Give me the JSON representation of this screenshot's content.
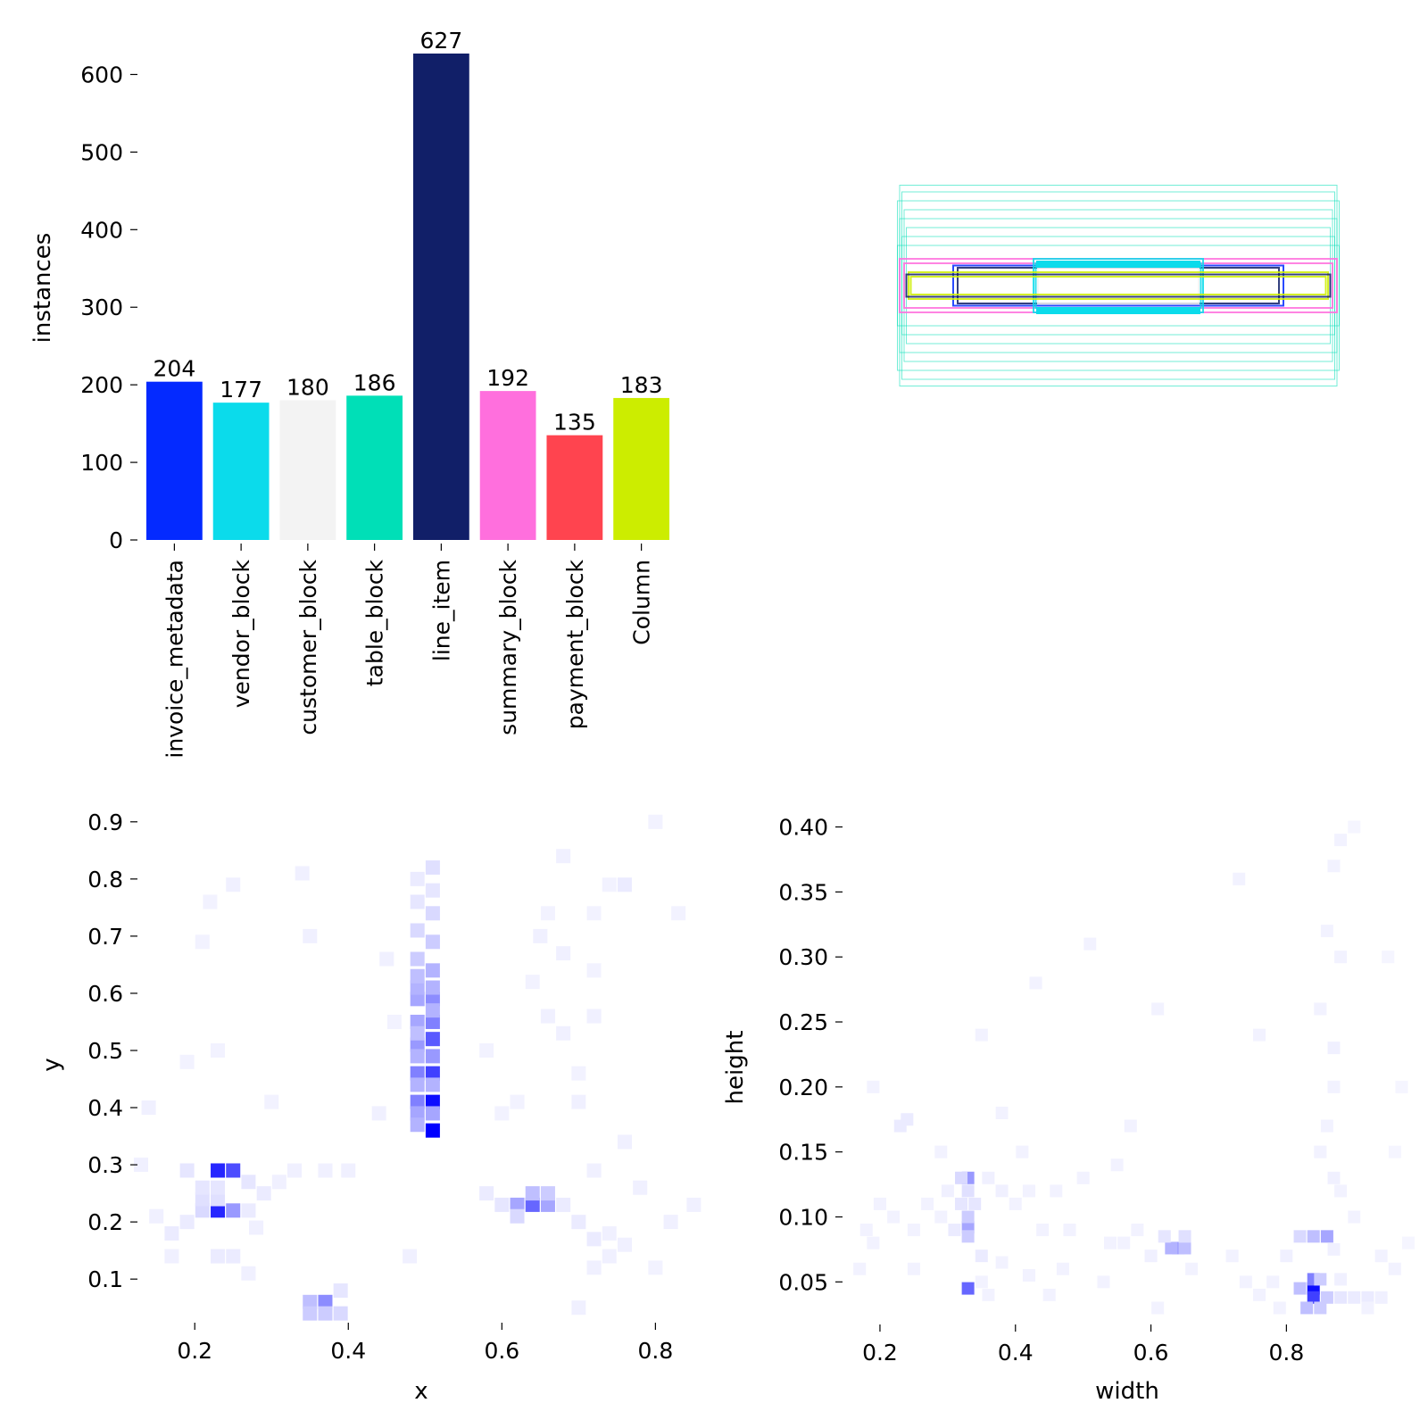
{
  "chart_data": [
    {
      "type": "bar",
      "ylabel": "instances",
      "ylim": [
        0,
        650
      ],
      "yticks": [
        0,
        100,
        200,
        300,
        400,
        500,
        600
      ],
      "categories": [
        "invoice_metadata",
        "vendor_block",
        "customer_block",
        "table_block",
        "line_item",
        "summary_block",
        "payment_block",
        "Column"
      ],
      "values": [
        204,
        177,
        180,
        186,
        627,
        192,
        135,
        183
      ],
      "colors": [
        "#042aff",
        "#0bdbeb",
        "#f3f3f3",
        "#00dfb7",
        "#111f68",
        "#ff6fdd",
        "#ff444f",
        "#cced00"
      ]
    },
    {
      "type": "boxes",
      "boxes": [
        {
          "w": 0.98,
          "h": 0.45,
          "color": "#00dfb7"
        },
        {
          "w": 0.97,
          "h": 0.42,
          "color": "#00dfb7"
        },
        {
          "w": 0.99,
          "h": 0.38,
          "color": "#00dfb7"
        },
        {
          "w": 0.96,
          "h": 0.34,
          "color": "#00dfb7"
        },
        {
          "w": 0.98,
          "h": 0.3,
          "color": "#00dfb7"
        },
        {
          "w": 0.95,
          "h": 0.26,
          "color": "#00dfb7"
        },
        {
          "w": 0.97,
          "h": 0.22,
          "color": "#00dfb7"
        },
        {
          "w": 0.99,
          "h": 0.18,
          "color": "#00dfb7"
        },
        {
          "w": 0.98,
          "h": 0.12,
          "color": "#ff6fdd"
        },
        {
          "w": 0.96,
          "h": 0.1,
          "color": "#ff6fdd"
        },
        {
          "w": 0.74,
          "h": 0.09,
          "color": "#042aff"
        },
        {
          "w": 0.72,
          "h": 0.08,
          "color": "#111f68"
        },
        {
          "w": 0.38,
          "h": 0.12,
          "color": "#0bdbeb"
        },
        {
          "w": 0.37,
          "h": 0.1,
          "color": "#0bdbeb"
        },
        {
          "w": 0.36,
          "h": 0.08,
          "color": "#f3f3f3"
        },
        {
          "w": 0.94,
          "h": 0.06,
          "color": "#cced00"
        },
        {
          "w": 0.95,
          "h": 0.05,
          "color": "#111f68"
        },
        {
          "w": 0.93,
          "h": 0.04,
          "color": "#cced00"
        }
      ]
    },
    {
      "type": "heatmap",
      "xlabel": "x",
      "ylabel": "y",
      "xlim": [
        0.13,
        0.86
      ],
      "ylim": [
        0.03,
        0.92
      ],
      "xticks": [
        0.2,
        0.4,
        0.6,
        0.8
      ],
      "yticks": [
        0.1,
        0.2,
        0.3,
        0.4,
        0.5,
        0.6,
        0.7,
        0.8,
        0.9
      ],
      "points": [
        [
          0.51,
          0.36,
          1.0
        ],
        [
          0.51,
          0.41,
          0.95
        ],
        [
          0.49,
          0.41,
          0.5
        ],
        [
          0.49,
          0.39,
          0.35
        ],
        [
          0.49,
          0.37,
          0.3
        ],
        [
          0.49,
          0.46,
          0.5
        ],
        [
          0.51,
          0.46,
          0.75
        ],
        [
          0.49,
          0.44,
          0.3
        ],
        [
          0.51,
          0.44,
          0.3
        ],
        [
          0.51,
          0.52,
          0.65
        ],
        [
          0.49,
          0.51,
          0.4
        ],
        [
          0.49,
          0.49,
          0.3
        ],
        [
          0.51,
          0.49,
          0.4
        ],
        [
          0.51,
          0.55,
          0.5
        ],
        [
          0.49,
          0.55,
          0.35
        ],
        [
          0.49,
          0.53,
          0.25
        ],
        [
          0.51,
          0.59,
          0.45
        ],
        [
          0.49,
          0.59,
          0.35
        ],
        [
          0.49,
          0.61,
          0.3
        ],
        [
          0.51,
          0.61,
          0.3
        ],
        [
          0.49,
          0.63,
          0.25
        ],
        [
          0.51,
          0.64,
          0.3
        ],
        [
          0.49,
          0.66,
          0.2
        ],
        [
          0.51,
          0.69,
          0.2
        ],
        [
          0.49,
          0.71,
          0.15
        ],
        [
          0.51,
          0.74,
          0.15
        ],
        [
          0.49,
          0.76,
          0.1
        ],
        [
          0.51,
          0.78,
          0.1
        ],
        [
          0.49,
          0.8,
          0.08
        ],
        [
          0.51,
          0.82,
          0.12
        ],
        [
          0.51,
          0.57,
          0.3
        ],
        [
          0.51,
          0.39,
          0.35
        ],
        [
          0.23,
          0.29,
          0.85
        ],
        [
          0.25,
          0.29,
          0.7
        ],
        [
          0.23,
          0.22,
          0.85
        ],
        [
          0.25,
          0.22,
          0.4
        ],
        [
          0.21,
          0.22,
          0.15
        ],
        [
          0.21,
          0.24,
          0.12
        ],
        [
          0.23,
          0.24,
          0.12
        ],
        [
          0.21,
          0.26,
          0.1
        ],
        [
          0.23,
          0.26,
          0.1
        ],
        [
          0.19,
          0.29,
          0.1
        ],
        [
          0.27,
          0.27,
          0.1
        ],
        [
          0.19,
          0.2,
          0.08
        ],
        [
          0.27,
          0.22,
          0.08
        ],
        [
          0.29,
          0.25,
          0.08
        ],
        [
          0.17,
          0.18,
          0.08
        ],
        [
          0.15,
          0.21,
          0.06
        ],
        [
          0.13,
          0.3,
          0.06
        ],
        [
          0.31,
          0.27,
          0.06
        ],
        [
          0.33,
          0.29,
          0.06
        ],
        [
          0.17,
          0.14,
          0.06
        ],
        [
          0.23,
          0.14,
          0.08
        ],
        [
          0.25,
          0.14,
          0.08
        ],
        [
          0.27,
          0.11,
          0.06
        ],
        [
          0.14,
          0.4,
          0.06
        ],
        [
          0.37,
          0.06,
          0.45
        ],
        [
          0.35,
          0.06,
          0.25
        ],
        [
          0.35,
          0.04,
          0.2
        ],
        [
          0.37,
          0.04,
          0.2
        ],
        [
          0.39,
          0.04,
          0.15
        ],
        [
          0.39,
          0.08,
          0.1
        ],
        [
          0.64,
          0.23,
          0.6
        ],
        [
          0.62,
          0.23,
          0.35
        ],
        [
          0.66,
          0.23,
          0.35
        ],
        [
          0.64,
          0.25,
          0.25
        ],
        [
          0.66,
          0.25,
          0.2
        ],
        [
          0.62,
          0.21,
          0.15
        ],
        [
          0.6,
          0.23,
          0.1
        ],
        [
          0.68,
          0.23,
          0.08
        ],
        [
          0.58,
          0.25,
          0.08
        ],
        [
          0.7,
          0.2,
          0.08
        ],
        [
          0.72,
          0.17,
          0.08
        ],
        [
          0.74,
          0.18,
          0.06
        ],
        [
          0.76,
          0.16,
          0.06
        ],
        [
          0.72,
          0.12,
          0.06
        ],
        [
          0.74,
          0.14,
          0.06
        ],
        [
          0.8,
          0.12,
          0.05
        ],
        [
          0.78,
          0.26,
          0.06
        ],
        [
          0.82,
          0.2,
          0.06
        ],
        [
          0.85,
          0.23,
          0.06
        ],
        [
          0.7,
          0.05,
          0.06
        ],
        [
          0.72,
          0.29,
          0.06
        ],
        [
          0.76,
          0.34,
          0.06
        ],
        [
          0.7,
          0.41,
          0.06
        ],
        [
          0.6,
          0.39,
          0.05
        ],
        [
          0.58,
          0.5,
          0.05
        ],
        [
          0.7,
          0.46,
          0.05
        ],
        [
          0.68,
          0.53,
          0.06
        ],
        [
          0.72,
          0.56,
          0.06
        ],
        [
          0.66,
          0.56,
          0.06
        ],
        [
          0.68,
          0.67,
          0.06
        ],
        [
          0.65,
          0.7,
          0.06
        ],
        [
          0.64,
          0.62,
          0.05
        ],
        [
          0.66,
          0.74,
          0.05
        ],
        [
          0.72,
          0.74,
          0.05
        ],
        [
          0.76,
          0.79,
          0.08
        ],
        [
          0.74,
          0.79,
          0.05
        ],
        [
          0.68,
          0.84,
          0.06
        ],
        [
          0.8,
          0.9,
          0.05
        ],
        [
          0.83,
          0.74,
          0.05
        ],
        [
          0.72,
          0.64,
          0.05
        ],
        [
          0.44,
          0.39,
          0.06
        ],
        [
          0.45,
          0.66,
          0.06
        ],
        [
          0.46,
          0.55,
          0.05
        ],
        [
          0.4,
          0.29,
          0.06
        ],
        [
          0.37,
          0.29,
          0.06
        ],
        [
          0.34,
          0.81,
          0.06
        ],
        [
          0.35,
          0.7,
          0.06
        ],
        [
          0.25,
          0.79,
          0.06
        ],
        [
          0.22,
          0.76,
          0.05
        ],
        [
          0.21,
          0.69,
          0.05
        ],
        [
          0.23,
          0.5,
          0.05
        ],
        [
          0.19,
          0.48,
          0.05
        ],
        [
          0.28,
          0.19,
          0.06
        ],
        [
          0.3,
          0.41,
          0.05
        ],
        [
          0.48,
          0.14,
          0.06
        ],
        [
          0.62,
          0.41,
          0.05
        ]
      ]
    },
    {
      "type": "heatmap",
      "xlabel": "width",
      "ylabel": "height",
      "xlim": [
        0.15,
        0.98
      ],
      "ylim": [
        0.02,
        0.41
      ],
      "xticks": [
        0.2,
        0.4,
        0.6,
        0.8
      ],
      "yticks": [
        0.05,
        0.1,
        0.15,
        0.2,
        0.25,
        0.3,
        0.35,
        0.4
      ],
      "points": [
        [
          0.84,
          0.045,
          0.95
        ],
        [
          0.84,
          0.038,
          0.75
        ],
        [
          0.84,
          0.052,
          0.5
        ],
        [
          0.83,
          0.03,
          0.25
        ],
        [
          0.85,
          0.03,
          0.2
        ],
        [
          0.86,
          0.038,
          0.2
        ],
        [
          0.82,
          0.045,
          0.25
        ],
        [
          0.85,
          0.052,
          0.2
        ],
        [
          0.86,
          0.085,
          0.35
        ],
        [
          0.84,
          0.085,
          0.25
        ],
        [
          0.82,
          0.085,
          0.15
        ],
        [
          0.88,
          0.038,
          0.1
        ],
        [
          0.9,
          0.038,
          0.08
        ],
        [
          0.92,
          0.038,
          0.08
        ],
        [
          0.94,
          0.038,
          0.06
        ],
        [
          0.92,
          0.03,
          0.05
        ],
        [
          0.88,
          0.052,
          0.06
        ],
        [
          0.87,
          0.075,
          0.06
        ],
        [
          0.87,
          0.13,
          0.06
        ],
        [
          0.86,
          0.17,
          0.05
        ],
        [
          0.87,
          0.23,
          0.06
        ],
        [
          0.88,
          0.3,
          0.05
        ],
        [
          0.86,
          0.32,
          0.05
        ],
        [
          0.87,
          0.37,
          0.05
        ],
        [
          0.88,
          0.39,
          0.05
        ],
        [
          0.9,
          0.4,
          0.04
        ],
        [
          0.85,
          0.26,
          0.05
        ],
        [
          0.87,
          0.2,
          0.05
        ],
        [
          0.85,
          0.15,
          0.05
        ],
        [
          0.88,
          0.12,
          0.05
        ],
        [
          0.9,
          0.1,
          0.05
        ],
        [
          0.94,
          0.07,
          0.05
        ],
        [
          0.96,
          0.06,
          0.05
        ],
        [
          0.98,
          0.08,
          0.04
        ],
        [
          0.96,
          0.15,
          0.04
        ],
        [
          0.95,
          0.3,
          0.04
        ],
        [
          0.97,
          0.2,
          0.04
        ],
        [
          0.33,
          0.045,
          0.6
        ],
        [
          0.33,
          0.13,
          0.4
        ],
        [
          0.33,
          0.092,
          0.35
        ],
        [
          0.33,
          0.1,
          0.2
        ],
        [
          0.33,
          0.085,
          0.2
        ],
        [
          0.32,
          0.13,
          0.15
        ],
        [
          0.33,
          0.12,
          0.12
        ],
        [
          0.32,
          0.11,
          0.1
        ],
        [
          0.34,
          0.11,
          0.1
        ],
        [
          0.31,
          0.09,
          0.08
        ],
        [
          0.35,
          0.07,
          0.08
        ],
        [
          0.3,
          0.12,
          0.06
        ],
        [
          0.36,
          0.13,
          0.06
        ],
        [
          0.38,
          0.12,
          0.06
        ],
        [
          0.29,
          0.1,
          0.05
        ],
        [
          0.27,
          0.11,
          0.05
        ],
        [
          0.25,
          0.09,
          0.05
        ],
        [
          0.23,
          0.17,
          0.08
        ],
        [
          0.24,
          0.175,
          0.08
        ],
        [
          0.22,
          0.1,
          0.05
        ],
        [
          0.2,
          0.11,
          0.05
        ],
        [
          0.18,
          0.09,
          0.05
        ],
        [
          0.38,
          0.065,
          0.05
        ],
        [
          0.36,
          0.04,
          0.05
        ],
        [
          0.4,
          0.11,
          0.05
        ],
        [
          0.42,
          0.12,
          0.05
        ],
        [
          0.44,
          0.09,
          0.05
        ],
        [
          0.46,
          0.12,
          0.05
        ],
        [
          0.48,
          0.09,
          0.05
        ],
        [
          0.5,
          0.13,
          0.05
        ],
        [
          0.38,
          0.18,
          0.05
        ],
        [
          0.35,
          0.05,
          0.05
        ],
        [
          0.64,
          0.076,
          0.4
        ],
        [
          0.63,
          0.076,
          0.3
        ],
        [
          0.65,
          0.076,
          0.25
        ],
        [
          0.65,
          0.085,
          0.12
        ],
        [
          0.62,
          0.085,
          0.1
        ],
        [
          0.6,
          0.07,
          0.06
        ],
        [
          0.66,
          0.06,
          0.05
        ],
        [
          0.58,
          0.09,
          0.05
        ],
        [
          0.56,
          0.08,
          0.05
        ],
        [
          0.54,
          0.08,
          0.05
        ],
        [
          0.61,
          0.03,
          0.05
        ],
        [
          0.53,
          0.05,
          0.05
        ],
        [
          0.47,
          0.06,
          0.05
        ],
        [
          0.42,
          0.055,
          0.05
        ],
        [
          0.45,
          0.04,
          0.05
        ],
        [
          0.19,
          0.08,
          0.05
        ],
        [
          0.17,
          0.06,
          0.05
        ],
        [
          0.19,
          0.2,
          0.05
        ],
        [
          0.43,
          0.28,
          0.05
        ],
        [
          0.51,
          0.31,
          0.05
        ],
        [
          0.61,
          0.26,
          0.05
        ],
        [
          0.57,
          0.17,
          0.05
        ],
        [
          0.73,
          0.36,
          0.05
        ],
        [
          0.76,
          0.24,
          0.05
        ],
        [
          0.35,
          0.24,
          0.05
        ],
        [
          0.25,
          0.06,
          0.05
        ],
        [
          0.29,
          0.15,
          0.05
        ],
        [
          0.41,
          0.15,
          0.05
        ],
        [
          0.55,
          0.14,
          0.05
        ],
        [
          0.8,
          0.07,
          0.06
        ],
        [
          0.78,
          0.05,
          0.05
        ],
        [
          0.76,
          0.04,
          0.05
        ],
        [
          0.74,
          0.05,
          0.05
        ],
        [
          0.72,
          0.07,
          0.05
        ],
        [
          0.79,
          0.03,
          0.05
        ]
      ]
    }
  ]
}
